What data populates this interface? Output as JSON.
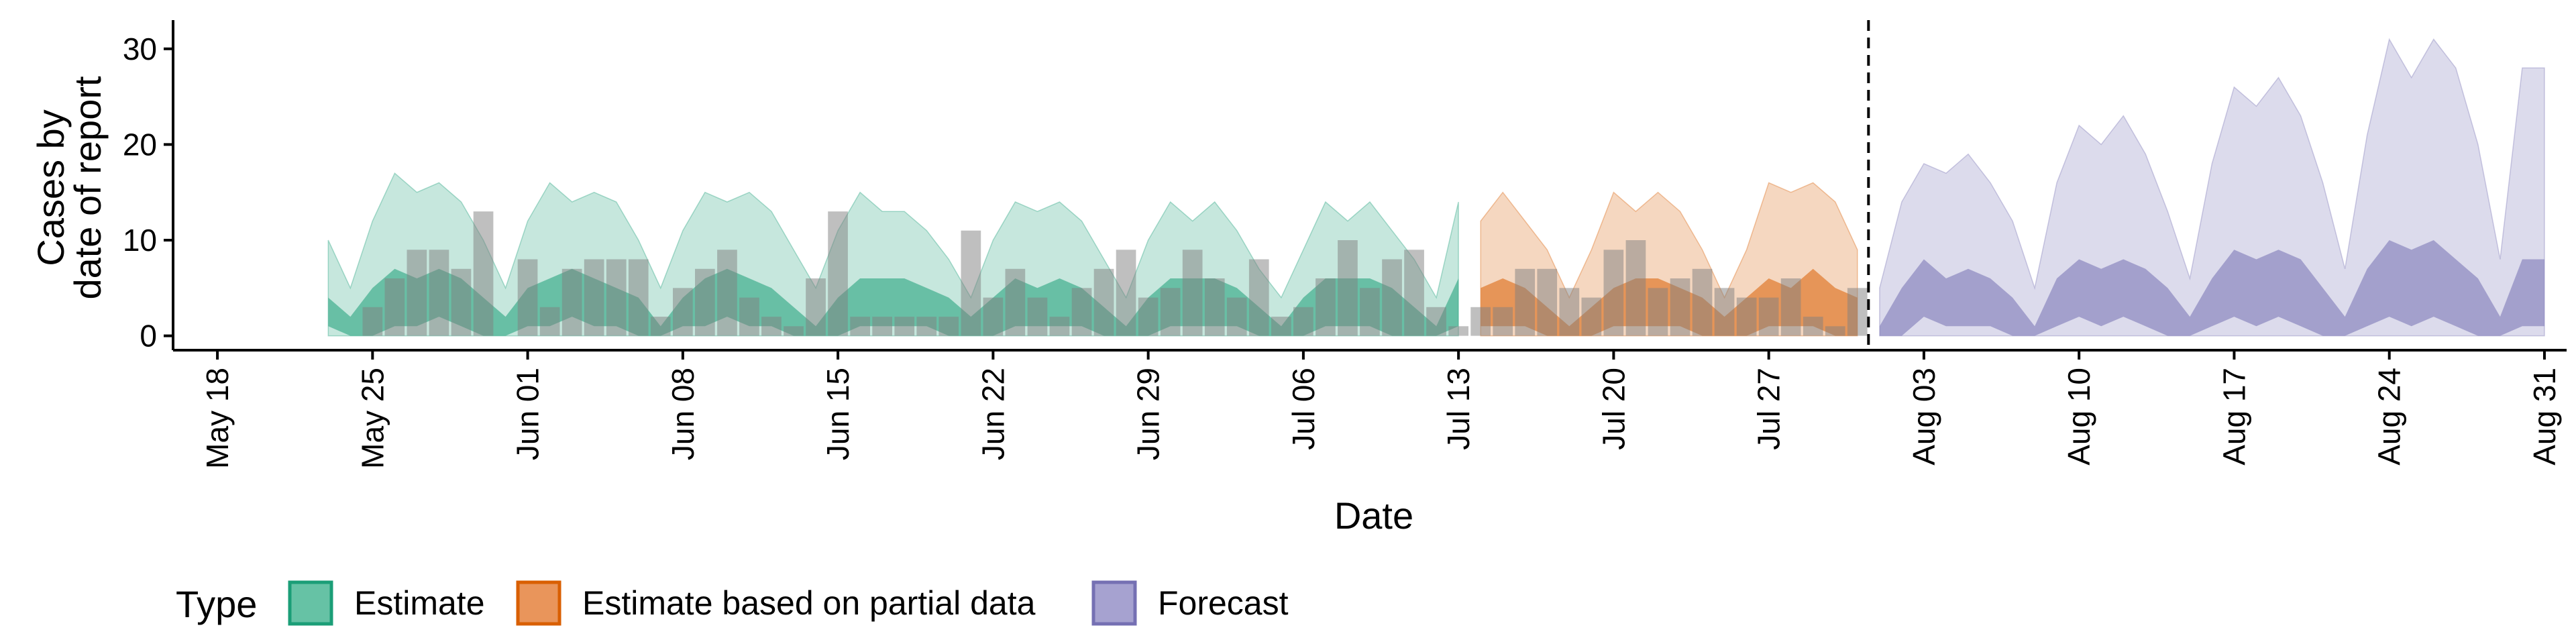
{
  "chart_data": {
    "type": "area",
    "title": "",
    "xlabel": "Date",
    "ylabel_lines": [
      "Cases by",
      "date of report"
    ],
    "x_start_date": "2020-05-16",
    "xlim": [
      0,
      108
    ],
    "ylim": [
      -1.5,
      33
    ],
    "yticks": [
      0,
      10,
      20,
      30
    ],
    "xticks": [
      {
        "x": 2,
        "label": "May 18"
      },
      {
        "x": 9,
        "label": "May 25"
      },
      {
        "x": 16,
        "label": "Jun 01"
      },
      {
        "x": 23,
        "label": "Jun 08"
      },
      {
        "x": 30,
        "label": "Jun 15"
      },
      {
        "x": 37,
        "label": "Jun 22"
      },
      {
        "x": 44,
        "label": "Jun 29"
      },
      {
        "x": 51,
        "label": "Jul 06"
      },
      {
        "x": 58,
        "label": "Jul 13"
      },
      {
        "x": 65,
        "label": "Jul 20"
      },
      {
        "x": 72,
        "label": "Jul 27"
      },
      {
        "x": 79,
        "label": "Aug 03"
      },
      {
        "x": 86,
        "label": "Aug 10"
      },
      {
        "x": 93,
        "label": "Aug 17"
      },
      {
        "x": 100,
        "label": "Aug 24"
      },
      {
        "x": 107,
        "label": "Aug 31"
      }
    ],
    "forecast_date_x": 76.5,
    "legend": {
      "title": "Type",
      "position": "bottom",
      "entries": [
        {
          "label": "Estimate",
          "fill": "#66c2a5",
          "stroke": "#1b9e77"
        },
        {
          "label": "Estimate based on partial data",
          "fill": "#e9955b",
          "stroke": "#d95f02"
        },
        {
          "label": "Forecast",
          "fill": "#a6a2d0",
          "stroke": "#7570b3"
        }
      ]
    },
    "series": [
      {
        "name": "Estimate",
        "color": "#1b9e77",
        "x": [
          7,
          8,
          9,
          10,
          11,
          12,
          13,
          14,
          15,
          16,
          17,
          18,
          19,
          20,
          21,
          22,
          23,
          24,
          25,
          26,
          27,
          28,
          29,
          30,
          31,
          32,
          33,
          34,
          35,
          36,
          37,
          38,
          39,
          40,
          41,
          42,
          43,
          44,
          45,
          46,
          47,
          48,
          49,
          50,
          51,
          52,
          53,
          54,
          55,
          56,
          57,
          58
        ],
        "outer_upper": [
          10,
          5,
          12,
          17,
          15,
          16,
          14,
          10,
          5,
          12,
          16,
          14,
          15,
          14,
          10,
          5,
          11,
          15,
          14,
          15,
          13,
          9,
          5,
          11,
          15,
          13,
          13,
          11,
          8,
          4,
          10,
          14,
          13,
          14,
          12,
          8,
          4,
          10,
          14,
          12,
          14,
          11,
          7,
          4,
          9,
          14,
          12,
          14,
          11,
          8,
          4,
          14
        ],
        "outer_lower": [
          0,
          0,
          0,
          0,
          0,
          0,
          0,
          0,
          0,
          0,
          0,
          0,
          0,
          0,
          0,
          0,
          0,
          0,
          0,
          0,
          0,
          0,
          0,
          0,
          0,
          0,
          0,
          0,
          0,
          0,
          0,
          0,
          0,
          0,
          0,
          0,
          0,
          0,
          0,
          0,
          0,
          0,
          0,
          0,
          0,
          0,
          0,
          0,
          0,
          0,
          0,
          0
        ],
        "inner_upper": [
          4,
          2,
          5,
          7,
          6,
          7,
          6,
          4,
          2,
          5,
          6,
          7,
          6,
          5,
          4,
          1,
          4,
          6,
          7,
          6,
          5,
          3,
          1,
          4,
          6,
          6,
          6,
          5,
          4,
          2,
          4,
          6,
          5,
          6,
          5,
          3,
          1,
          4,
          6,
          6,
          6,
          5,
          3,
          1,
          4,
          6,
          6,
          6,
          5,
          3,
          1,
          6
        ],
        "inner_lower": [
          1,
          0,
          0,
          1,
          1,
          2,
          1,
          0,
          0,
          1,
          1,
          2,
          1,
          1,
          0,
          0,
          1,
          1,
          2,
          1,
          1,
          0,
          0,
          0,
          1,
          1,
          1,
          1,
          0,
          0,
          0,
          1,
          1,
          1,
          1,
          0,
          0,
          0,
          1,
          1,
          1,
          1,
          0,
          0,
          0,
          1,
          1,
          1,
          0,
          0,
          0,
          1
        ]
      },
      {
        "name": "Estimate based on partial data",
        "color": "#d95f02",
        "x": [
          59,
          60,
          61,
          62,
          63,
          64,
          65,
          66,
          67,
          68,
          69,
          70,
          71,
          72,
          73,
          74,
          75,
          76
        ],
        "outer_upper": [
          12,
          15,
          12,
          9,
          4,
          9,
          15,
          13,
          15,
          13,
          9,
          4,
          9,
          16,
          15,
          16,
          14,
          9
        ],
        "outer_lower": [
          0,
          0,
          0,
          0,
          0,
          0,
          0,
          0,
          0,
          0,
          0,
          0,
          0,
          0,
          0,
          0,
          0,
          0
        ],
        "inner_upper": [
          5,
          6,
          5,
          3,
          1,
          3,
          5,
          6,
          6,
          5,
          4,
          2,
          4,
          6,
          5,
          7,
          5,
          4
        ],
        "inner_lower": [
          1,
          1,
          1,
          0,
          0,
          0,
          1,
          1,
          1,
          1,
          0,
          0,
          0,
          1,
          1,
          1,
          0,
          0
        ]
      },
      {
        "name": "Forecast",
        "color": "#7570b3",
        "x": [
          77,
          78,
          79,
          80,
          81,
          82,
          83,
          84,
          85,
          86,
          87,
          88,
          89,
          90,
          91,
          92,
          93,
          94,
          95,
          96,
          97,
          98,
          99,
          100,
          101,
          102,
          103,
          104,
          105,
          106,
          107
        ],
        "outer_upper": [
          5,
          14,
          18,
          17,
          19,
          16,
          12,
          5,
          16,
          22,
          20,
          23,
          19,
          13,
          6,
          18,
          26,
          24,
          27,
          23,
          16,
          7,
          21,
          31,
          27,
          31,
          28,
          20,
          8,
          28,
          28
        ],
        "outer_lower": [
          0,
          0,
          0,
          0,
          0,
          0,
          0,
          0,
          0,
          0,
          0,
          0,
          0,
          0,
          0,
          0,
          0,
          0,
          0,
          0,
          0,
          0,
          0,
          0,
          0,
          0,
          0,
          0,
          0,
          0,
          0
        ],
        "inner_upper": [
          1,
          5,
          8,
          6,
          7,
          6,
          4,
          1,
          6,
          8,
          7,
          8,
          7,
          5,
          2,
          6,
          9,
          8,
          9,
          8,
          5,
          2,
          7,
          10,
          9,
          10,
          8,
          6,
          2,
          8,
          8
        ],
        "inner_lower": [
          0,
          0,
          2,
          1,
          1,
          1,
          0,
          0,
          1,
          2,
          1,
          2,
          1,
          0,
          0,
          1,
          2,
          1,
          2,
          1,
          0,
          0,
          1,
          2,
          1,
          2,
          1,
          0,
          0,
          1,
          1
        ]
      }
    ],
    "reported_cases": {
      "x": [
        9,
        10,
        11,
        12,
        13,
        14,
        16,
        17,
        18,
        19,
        20,
        21,
        22,
        23,
        24,
        25,
        26,
        27,
        28,
        29,
        30,
        31,
        32,
        33,
        34,
        35,
        36,
        37,
        38,
        39,
        40,
        41,
        42,
        43,
        44,
        45,
        46,
        47,
        48,
        49,
        50,
        51,
        52,
        53,
        54,
        55,
        56,
        57,
        58,
        59,
        60,
        61,
        62,
        63,
        64,
        65,
        66,
        67,
        68,
        69,
        70,
        71,
        72,
        73,
        74,
        75,
        76
      ],
      "values": [
        3,
        6,
        9,
        9,
        7,
        13,
        8,
        3,
        7,
        8,
        8,
        8,
        2,
        5,
        7,
        9,
        4,
        2,
        1,
        6,
        13,
        2,
        2,
        2,
        2,
        2,
        11,
        4,
        7,
        4,
        2,
        5,
        7,
        9,
        4,
        5,
        9,
        6,
        4,
        8,
        2,
        3,
        6,
        10,
        5,
        8,
        9,
        3,
        1,
        3,
        3,
        7,
        7,
        5,
        4,
        9,
        10,
        5,
        6,
        7,
        5,
        4,
        4,
        6,
        2,
        1,
        5
      ]
    }
  }
}
